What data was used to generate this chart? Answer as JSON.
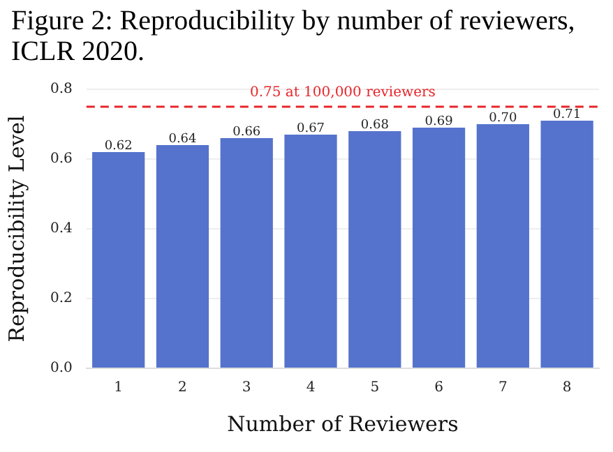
{
  "chart_data": {
    "type": "bar",
    "title": "Figure 2: Reproducibility by number of reviewers, ICLR 2020.",
    "xlabel": "Number of Reviewers",
    "ylabel": "Reproducibility Level",
    "categories": [
      "1",
      "2",
      "3",
      "4",
      "5",
      "6",
      "7",
      "8"
    ],
    "values": [
      0.62,
      0.64,
      0.66,
      0.67,
      0.68,
      0.69,
      0.7,
      0.71
    ],
    "color": "#5573cd",
    "value_labels": [
      "0.62",
      "0.64",
      "0.66",
      "0.67",
      "0.68",
      "0.69",
      "0.70",
      "0.71"
    ],
    "ylim": [
      0,
      0.8
    ],
    "yticks": [
      {
        "value": 0,
        "label": "0.0"
      },
      {
        "value": 0.2,
        "label": "0.2"
      },
      {
        "value": 0.4,
        "label": "0.4"
      },
      {
        "value": 0.6,
        "label": "0.6"
      },
      {
        "value": 0.8,
        "label": "0.8"
      }
    ],
    "ref_lines": [
      {
        "axis": "y",
        "value": 0.75,
        "label": "0.75 at 100,000 reviewers",
        "color": "#e8252a",
        "line_style": "dashed"
      }
    ],
    "grid": "y",
    "legend": false
  }
}
